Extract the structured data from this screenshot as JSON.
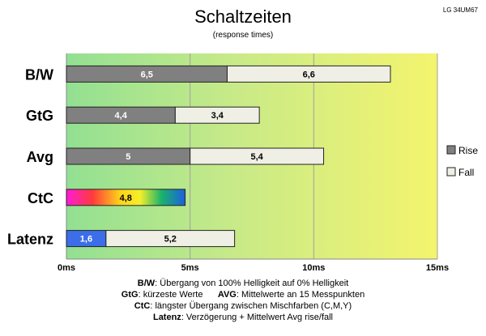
{
  "chart_data": {
    "type": "bar",
    "stacked": true,
    "orientation": "horizontal",
    "title": "Schaltzeiten",
    "subtitle": "(response times)",
    "corner_label": "LG 34UM67",
    "x_unit": "ms",
    "xlim": [
      0,
      15
    ],
    "xticks": [
      "0ms",
      "5ms",
      "10ms",
      "15ms"
    ],
    "grid": true,
    "legend_placement": "right",
    "background_gradient": [
      "#92e092",
      "#f4f46e"
    ],
    "categories": [
      "B/W",
      "GtG",
      "Avg",
      "CtC",
      "Latenz"
    ],
    "series": [
      {
        "name": "Rise",
        "color": "#808080",
        "values": [
          6.5,
          4.4,
          5,
          null,
          1.6
        ],
        "labels": [
          "6,5",
          "4,4",
          "5",
          null,
          "1,6"
        ]
      },
      {
        "name": "Fall",
        "color": "#efefe6",
        "values": [
          6.6,
          3.4,
          5.4,
          null,
          5.2
        ],
        "labels": [
          "6,6",
          "3,4",
          "5,4",
          null,
          "5,2"
        ]
      }
    ],
    "extra_bars": [
      {
        "category": "CtC",
        "value": 4.8,
        "label": "4,8",
        "style": "rainbow"
      }
    ],
    "latency_bar_color": "#3b6ee8"
  },
  "notes": {
    "bw_key": "B/W",
    "bw_text": ":  Übergang von 100% Helligkeit auf 0% Helligkeit",
    "gtg_key": "GtG",
    "gtg_text": ": kürzeste  Werte",
    "avg_key": "AVG",
    "avg_text": ": Mittelwerte  an 15 Messpunkten",
    "ctc_key": "CtC",
    "ctc_text": ": längster Übergang  zwischen Mischfarben  (C,M,Y)",
    "lat_key": "Latenz",
    "lat_text": ": Verzögerung  + Mittelwert  Avg rise/fall"
  }
}
